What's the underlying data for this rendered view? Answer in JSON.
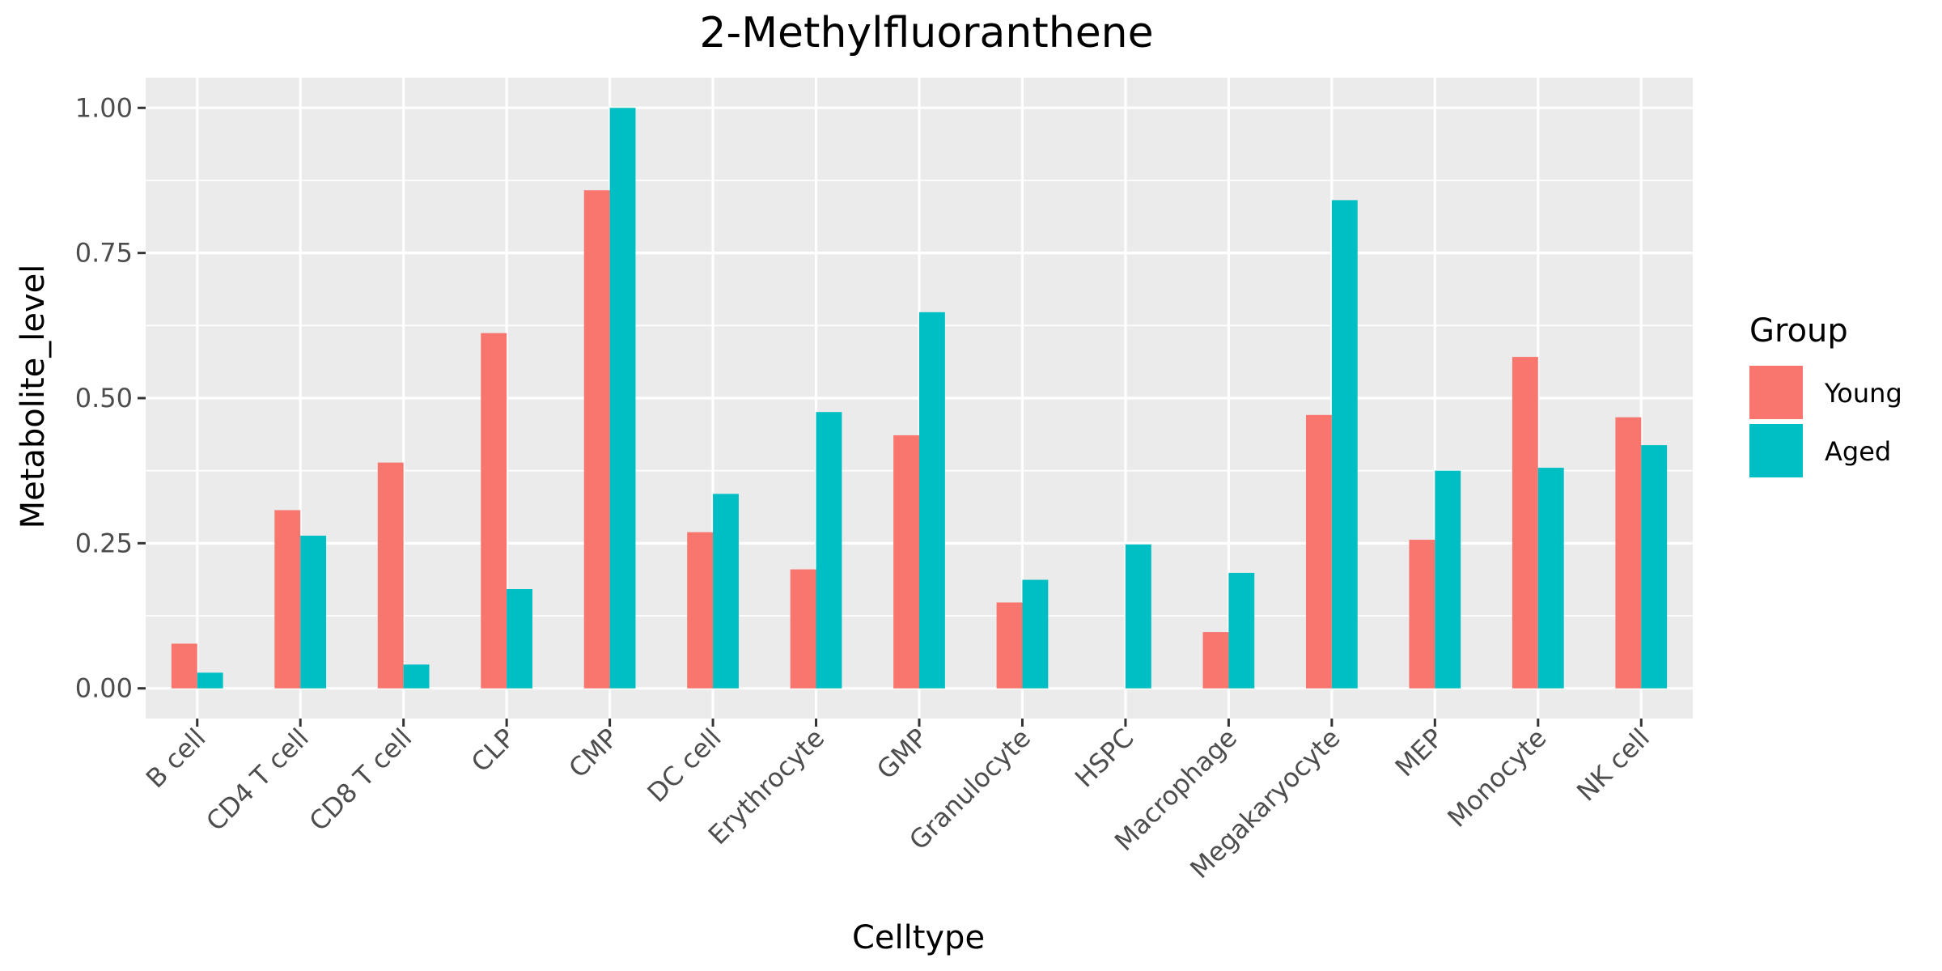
{
  "chart_data": {
    "type": "bar",
    "title": "2-Methylfluoranthene",
    "xlabel": "Celltype",
    "ylabel": "Metabolite_level",
    "ylim": [
      -0.052,
      1.052
    ],
    "yticks": [
      0.0,
      0.25,
      0.5,
      0.75,
      1.0
    ],
    "ytick_labels": [
      "0.00",
      "0.25",
      "0.50",
      "0.75",
      "1.00"
    ],
    "categories": [
      "B cell",
      "CD4 T cell",
      "CD8 T cell",
      "CLP",
      "CMP",
      "DC cell",
      "Erythrocyte",
      "GMP",
      "Granulocyte",
      "HSPC",
      "Macrophage",
      "Megakaryocyte",
      "MEP",
      "Monocyte",
      "NK cell"
    ],
    "series": [
      {
        "name": "Young",
        "color": "#F8766D",
        "values": [
          0.077,
          0.307,
          0.389,
          0.612,
          0.858,
          0.269,
          0.205,
          0.436,
          0.148,
          0.0,
          0.097,
          0.471,
          0.256,
          0.571,
          0.467
        ]
      },
      {
        "name": "Aged",
        "color": "#00BFC4",
        "values": [
          0.027,
          0.263,
          0.041,
          0.171,
          1.0,
          0.335,
          0.476,
          0.648,
          0.187,
          0.248,
          0.199,
          0.841,
          0.375,
          0.38,
          0.419
        ]
      }
    ],
    "legend": {
      "title": "Group",
      "position": "right"
    },
    "grid": true,
    "panel_background": "#EBEBEB"
  }
}
